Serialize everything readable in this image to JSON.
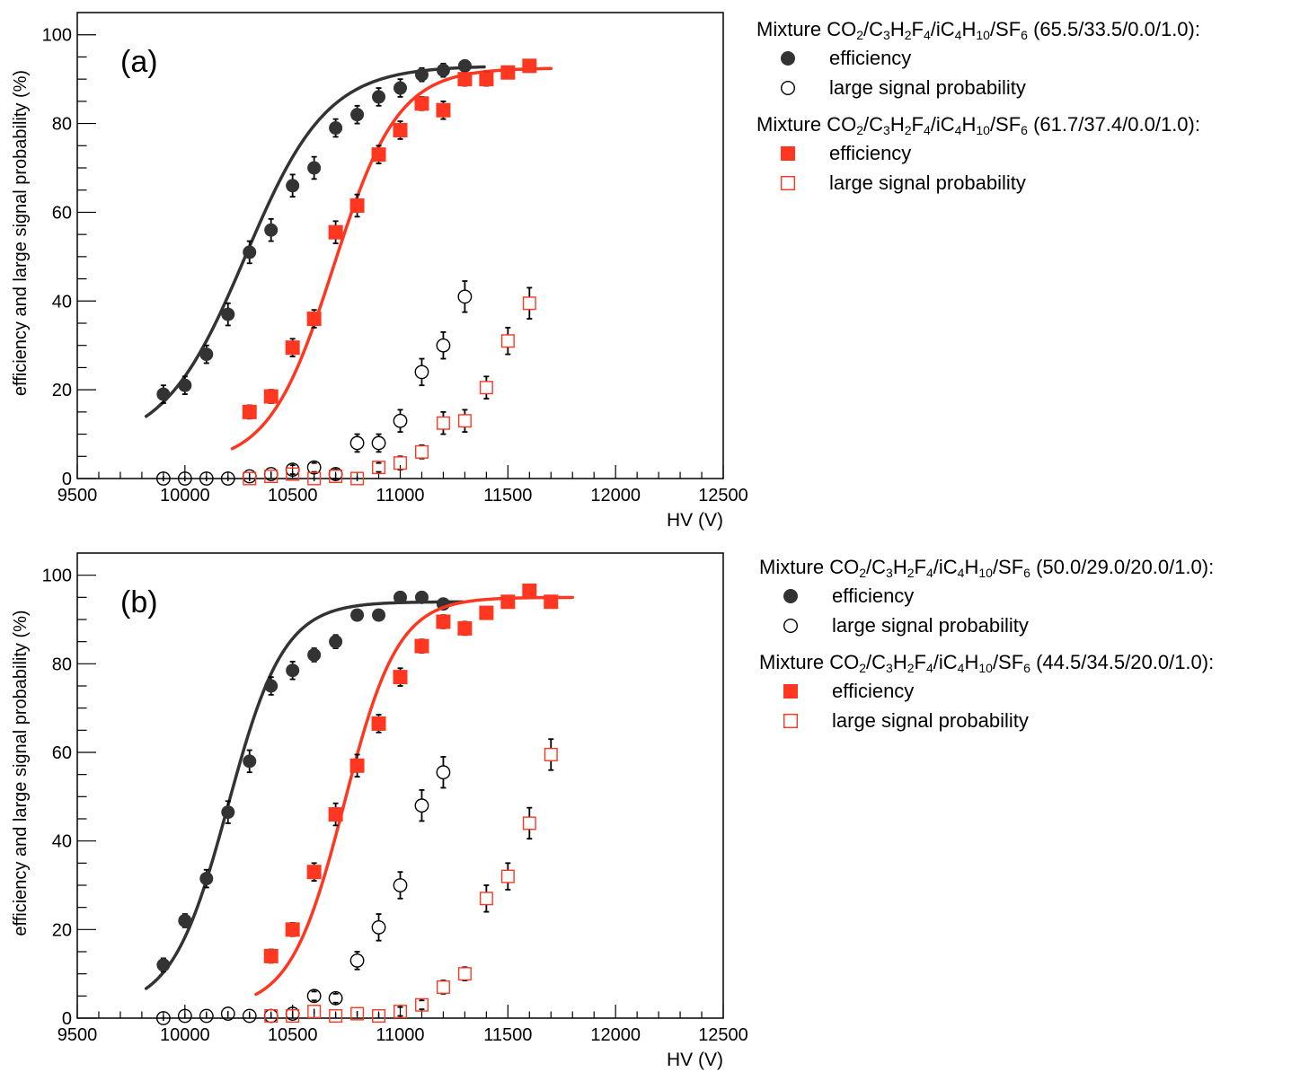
{
  "colors": {
    "series_black": "#333333",
    "series_red": "#ff3721",
    "axis": "#000000"
  },
  "chart_data": [
    {
      "type": "scatter",
      "panel_label": "(a)",
      "xlabel": "HV (V)",
      "ylabel": "efficiency and large signal probability (%)",
      "xlim": [
        9500,
        12500
      ],
      "ylim": [
        0,
        105
      ],
      "xticks": [
        9500,
        10000,
        10500,
        11000,
        11500,
        12000,
        12500
      ],
      "yticks": [
        0,
        20,
        40,
        60,
        80,
        100
      ],
      "legend_position": "right, outside",
      "groups": [
        {
          "mixture": {
            "prefix": "Mixture CO",
            "s1": "2",
            "m1": "/C",
            "s2": "3",
            "m2": "H",
            "s3": "2",
            "m3": "F",
            "s4": "4",
            "m4": "/iC",
            "s5": "4",
            "m5": "H",
            "s6": "10",
            "m6": "/SF",
            "s7": "6",
            "suffix": " (65.5/33.5/0.0/1.0):"
          },
          "color": "#333333",
          "series": [
            {
              "name": "efficiency",
              "marker": "filled-circle",
              "x": [
                9900,
                10000,
                10100,
                10200,
                10300,
                10400,
                10500,
                10600,
                10700,
                10800,
                10900,
                11000,
                11100,
                11200,
                11300
              ],
              "y": [
                19,
                21,
                28,
                37,
                51,
                56,
                66,
                70,
                79,
                82,
                86,
                88,
                91,
                92,
                93
              ],
              "err": [
                2,
                2,
                2,
                2.5,
                2.5,
                2.5,
                2.5,
                2.5,
                2,
                2,
                2,
                2,
                1.5,
                1.5,
                1
              ],
              "fit": {
                "x0": 9820,
                "x1": 11390,
                "max": 93,
                "min": 7,
                "mid": 10280,
                "width": 190
              }
            },
            {
              "name": "large signal probability",
              "marker": "open-circle",
              "x": [
                9900,
                10000,
                10100,
                10200,
                10300,
                10400,
                10500,
                10600,
                10700,
                10800,
                10900,
                11000,
                11100,
                11200,
                11300
              ],
              "y": [
                0,
                0,
                0,
                0,
                0.5,
                1,
                2,
                2.5,
                1,
                8,
                8,
                13,
                24,
                30,
                41
              ],
              "err": [
                0.5,
                0.5,
                0.5,
                0.5,
                0.5,
                0.5,
                1,
                1,
                1,
                2,
                2,
                2.5,
                3,
                3,
                3.5
              ]
            }
          ]
        },
        {
          "mixture": {
            "prefix": "Mixture CO",
            "s1": "2",
            "m1": "/C",
            "s2": "3",
            "m2": "H",
            "s3": "2",
            "m3": "F",
            "s4": "4",
            "m4": "/iC",
            "s5": "4",
            "m5": "H",
            "s6": "10",
            "m6": "/SF",
            "s7": "6",
            "suffix": " (61.7/37.4/0.0/1.0):"
          },
          "color": "#ff3721",
          "series": [
            {
              "name": "efficiency",
              "marker": "filled-square",
              "x": [
                10300,
                10400,
                10500,
                10600,
                10700,
                10800,
                10900,
                11000,
                11100,
                11200,
                11300,
                11400,
                11500,
                11600
              ],
              "y": [
                15,
                18.5,
                29.5,
                36,
                55.5,
                61.5,
                73,
                78.5,
                84.5,
                83,
                90,
                90,
                91.5,
                93
              ],
              "err": [
                1.5,
                1.5,
                2,
                2,
                2.5,
                2.5,
                2,
                2,
                1.5,
                2,
                1.5,
                1.5,
                1,
                1
              ],
              "fit": {
                "x0": 10220,
                "x1": 11700,
                "max": 92.5,
                "min": 3,
                "mid": 10690,
                "width": 150
              }
            },
            {
              "name": "large signal probability",
              "marker": "open-square",
              "x": [
                10300,
                10400,
                10500,
                10600,
                10700,
                10800,
                10900,
                11000,
                11100,
                11200,
                11300,
                11400,
                11500,
                11600
              ],
              "y": [
                0,
                0.5,
                1,
                0,
                0.5,
                0,
                2.5,
                3.5,
                6,
                12.5,
                13,
                20.5,
                31,
                39.5
              ],
              "err": [
                0.5,
                0.5,
                0.5,
                0.5,
                0.5,
                0.5,
                1,
                1.5,
                1.5,
                2.5,
                2.5,
                2.5,
                3,
                3.5
              ]
            }
          ]
        }
      ]
    },
    {
      "type": "scatter",
      "panel_label": "(b)",
      "xlabel": "HV (V)",
      "ylabel": "efficiency and large signal probability (%)",
      "xlim": [
        9500,
        12500
      ],
      "ylim": [
        0,
        105
      ],
      "xticks": [
        9500,
        10000,
        10500,
        11000,
        11500,
        12000,
        12500
      ],
      "yticks": [
        0,
        20,
        40,
        60,
        80,
        100
      ],
      "legend_position": "right, outside",
      "groups": [
        {
          "mixture": {
            "prefix": "Mixture CO",
            "s1": "2",
            "m1": "/C",
            "s2": "3",
            "m2": "H",
            "s3": "2",
            "m3": "F",
            "s4": "4",
            "m4": "/iC",
            "s5": "4",
            "m5": "H",
            "s6": "10",
            "m6": "/SF",
            "s7": "6",
            "suffix": " (50.0/29.0/20.0/1.0):"
          },
          "color": "#333333",
          "series": [
            {
              "name": "efficiency",
              "marker": "filled-circle",
              "x": [
                9900,
                10000,
                10100,
                10200,
                10300,
                10400,
                10500,
                10600,
                10700,
                10800,
                10900,
                11000,
                11100,
                11200
              ],
              "y": [
                12,
                22,
                31.5,
                46.5,
                58,
                75,
                78.5,
                82,
                85,
                91,
                91,
                95,
                95,
                93.5
              ],
              "err": [
                1.5,
                1.5,
                2,
                2.5,
                2.5,
                2,
                2,
                1.5,
                1.5,
                1,
                1,
                1,
                1,
                1
              ],
              "fit": {
                "x0": 9820,
                "x1": 11290,
                "max": 94,
                "min": 2,
                "mid": 10200,
                "width": 130
              }
            },
            {
              "name": "large signal probability",
              "marker": "open-circle",
              "x": [
                9900,
                10000,
                10100,
                10200,
                10300,
                10400,
                10500,
                10600,
                10700,
                10800,
                10900,
                11000,
                11100,
                11200
              ],
              "y": [
                0,
                0.5,
                0.5,
                1,
                0.5,
                0.5,
                1,
                5,
                4.5,
                13,
                20.5,
                30,
                48,
                55.5
              ],
              "err": [
                0.5,
                0.5,
                0.5,
                0.5,
                0.5,
                0.5,
                0.5,
                1,
                1,
                2,
                3,
                3,
                3.5,
                3.5
              ]
            }
          ]
        },
        {
          "mixture": {
            "prefix": "Mixture CO",
            "s1": "2",
            "m1": "/C",
            "s2": "3",
            "m2": "H",
            "s3": "2",
            "m3": "F",
            "s4": "4",
            "m4": "/iC",
            "s5": "4",
            "m5": "H",
            "s6": "10",
            "m6": "/SF",
            "s7": "6",
            "suffix": " (44.5/34.5/20.0/1.0):"
          },
          "color": "#ff3721",
          "series": [
            {
              "name": "efficiency",
              "marker": "filled-square",
              "x": [
                10400,
                10500,
                10600,
                10700,
                10800,
                10900,
                11000,
                11100,
                11200,
                11300,
                11400,
                11500,
                11600,
                11700
              ],
              "y": [
                14,
                20,
                33,
                46,
                57,
                66.5,
                77,
                84,
                89.5,
                88,
                91.5,
                94,
                96.5,
                94
              ],
              "err": [
                1.5,
                1.5,
                2,
                2.5,
                2.5,
                2,
                2,
                1.5,
                1.5,
                1.5,
                1,
                1,
                1,
                1
              ],
              "fit": {
                "x0": 10330,
                "x1": 11800,
                "max": 95,
                "min": 2,
                "mid": 10740,
                "width": 125
              }
            },
            {
              "name": "large signal probability",
              "marker": "open-square",
              "x": [
                10400,
                10500,
                10600,
                10700,
                10800,
                10900,
                11000,
                11100,
                11200,
                11300,
                11400,
                11500,
                11600,
                11700
              ],
              "y": [
                0.5,
                0.5,
                1.5,
                0.5,
                1,
                0.5,
                1.5,
                3,
                7,
                10,
                27,
                32,
                44,
                59.5
              ],
              "err": [
                0.5,
                0.5,
                0.5,
                0.5,
                0.5,
                0.5,
                1,
                1,
                1.5,
                1.5,
                3,
                3,
                3.5,
                3.5
              ]
            }
          ]
        }
      ]
    }
  ]
}
